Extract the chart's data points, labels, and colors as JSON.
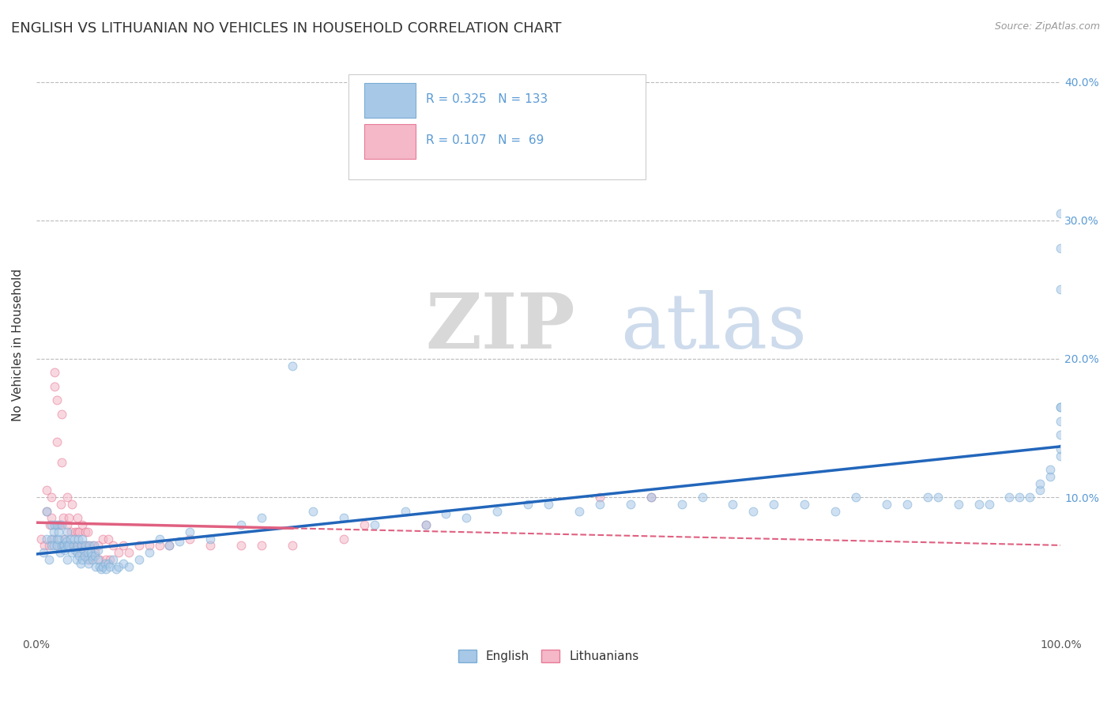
{
  "title": "ENGLISH VS LITHUANIAN NO VEHICLES IN HOUSEHOLD CORRELATION CHART",
  "source": "Source: ZipAtlas.com",
  "ylabel": "No Vehicles in Household",
  "xlim": [
    0,
    1.0
  ],
  "ylim": [
    0,
    0.42
  ],
  "watermark_zip": "ZIP",
  "watermark_atlas": "atlas",
  "english_color": "#a8c8e8",
  "english_edge_color": "#7aadd4",
  "lithuanian_color": "#f4b8c8",
  "lithuanian_edge_color": "#e87a97",
  "english_line_color": "#2266bb",
  "lithuanian_line_color": "#e06080",
  "background_color": "#ffffff",
  "grid_color": "#bbbbbb",
  "title_fontsize": 13,
  "axis_label_fontsize": 11,
  "tick_fontsize": 10,
  "scatter_size": 60,
  "scatter_alpha": 0.55,
  "line_width": 2.5,
  "eng_x": [
    0.007,
    0.01,
    0.01,
    0.012,
    0.015,
    0.015,
    0.015,
    0.017,
    0.017,
    0.018,
    0.02,
    0.02,
    0.02,
    0.022,
    0.022,
    0.023,
    0.025,
    0.025,
    0.026,
    0.027,
    0.028,
    0.028,
    0.029,
    0.03,
    0.03,
    0.03,
    0.032,
    0.033,
    0.035,
    0.036,
    0.037,
    0.038,
    0.039,
    0.04,
    0.04,
    0.041,
    0.042,
    0.043,
    0.044,
    0.045,
    0.045,
    0.046,
    0.047,
    0.048,
    0.05,
    0.05,
    0.051,
    0.052,
    0.053,
    0.054,
    0.055,
    0.056,
    0.057,
    0.058,
    0.06,
    0.06,
    0.062,
    0.063,
    0.065,
    0.067,
    0.068,
    0.07,
    0.072,
    0.075,
    0.078,
    0.08,
    0.085,
    0.09,
    0.1,
    0.11,
    0.12,
    0.13,
    0.14,
    0.15,
    0.17,
    0.2,
    0.22,
    0.25,
    0.27,
    0.3,
    0.33,
    0.36,
    0.38,
    0.4,
    0.42,
    0.45,
    0.48,
    0.5,
    0.53,
    0.55,
    0.58,
    0.6,
    0.63,
    0.65,
    0.68,
    0.7,
    0.72,
    0.75,
    0.78,
    0.8,
    0.83,
    0.85,
    0.87,
    0.88,
    0.9,
    0.92,
    0.93,
    0.95,
    0.96,
    0.97,
    0.98,
    0.98,
    0.99,
    0.99,
    1.0,
    1.0,
    1.0,
    1.0,
    1.0,
    1.0,
    1.0,
    1.0,
    1.0
  ],
  "eng_y": [
    0.06,
    0.07,
    0.09,
    0.055,
    0.07,
    0.08,
    0.065,
    0.075,
    0.065,
    0.08,
    0.07,
    0.08,
    0.065,
    0.07,
    0.075,
    0.06,
    0.065,
    0.08,
    0.065,
    0.065,
    0.07,
    0.062,
    0.068,
    0.055,
    0.065,
    0.075,
    0.065,
    0.07,
    0.06,
    0.065,
    0.07,
    0.062,
    0.055,
    0.065,
    0.06,
    0.07,
    0.058,
    0.052,
    0.065,
    0.07,
    0.055,
    0.062,
    0.058,
    0.065,
    0.06,
    0.055,
    0.052,
    0.065,
    0.06,
    0.058,
    0.055,
    0.065,
    0.058,
    0.05,
    0.055,
    0.062,
    0.05,
    0.048,
    0.05,
    0.052,
    0.048,
    0.052,
    0.05,
    0.055,
    0.048,
    0.05,
    0.052,
    0.05,
    0.055,
    0.06,
    0.07,
    0.065,
    0.068,
    0.075,
    0.07,
    0.08,
    0.085,
    0.195,
    0.09,
    0.085,
    0.08,
    0.09,
    0.08,
    0.088,
    0.085,
    0.09,
    0.095,
    0.095,
    0.09,
    0.095,
    0.095,
    0.1,
    0.095,
    0.1,
    0.095,
    0.09,
    0.095,
    0.095,
    0.09,
    0.1,
    0.095,
    0.095,
    0.1,
    0.1,
    0.095,
    0.095,
    0.095,
    0.1,
    0.1,
    0.1,
    0.105,
    0.11,
    0.115,
    0.12,
    0.13,
    0.135,
    0.145,
    0.155,
    0.165,
    0.305,
    0.25,
    0.28,
    0.165
  ],
  "lit_x": [
    0.005,
    0.008,
    0.01,
    0.01,
    0.012,
    0.013,
    0.015,
    0.015,
    0.016,
    0.018,
    0.018,
    0.02,
    0.02,
    0.02,
    0.022,
    0.023,
    0.024,
    0.025,
    0.025,
    0.026,
    0.027,
    0.028,
    0.03,
    0.03,
    0.03,
    0.032,
    0.033,
    0.034,
    0.035,
    0.036,
    0.038,
    0.039,
    0.04,
    0.04,
    0.042,
    0.043,
    0.044,
    0.045,
    0.046,
    0.048,
    0.05,
    0.05,
    0.052,
    0.055,
    0.057,
    0.06,
    0.062,
    0.065,
    0.068,
    0.07,
    0.072,
    0.075,
    0.08,
    0.085,
    0.09,
    0.1,
    0.11,
    0.12,
    0.13,
    0.15,
    0.17,
    0.2,
    0.22,
    0.25,
    0.3,
    0.32,
    0.38,
    0.55,
    0.6
  ],
  "lit_y": [
    0.07,
    0.065,
    0.105,
    0.09,
    0.065,
    0.08,
    0.1,
    0.085,
    0.07,
    0.19,
    0.18,
    0.17,
    0.14,
    0.065,
    0.08,
    0.08,
    0.095,
    0.125,
    0.16,
    0.085,
    0.065,
    0.07,
    0.1,
    0.08,
    0.065,
    0.085,
    0.065,
    0.075,
    0.095,
    0.065,
    0.075,
    0.065,
    0.085,
    0.075,
    0.075,
    0.065,
    0.06,
    0.08,
    0.065,
    0.075,
    0.075,
    0.065,
    0.055,
    0.065,
    0.06,
    0.065,
    0.055,
    0.07,
    0.055,
    0.07,
    0.055,
    0.065,
    0.06,
    0.065,
    0.06,
    0.065,
    0.065,
    0.065,
    0.065,
    0.07,
    0.065,
    0.065,
    0.065,
    0.065,
    0.07,
    0.08,
    0.08,
    0.1,
    0.1
  ]
}
